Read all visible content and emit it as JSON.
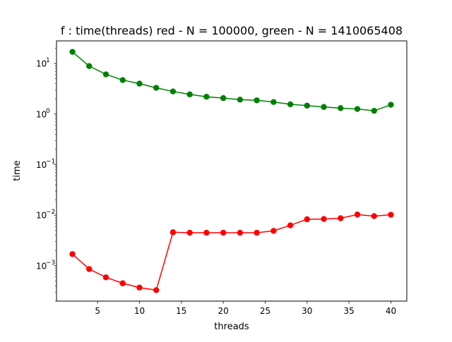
{
  "chart_data": {
    "type": "line",
    "title": "f : time(threads) red - N = 100000, green - N = 1410065408",
    "xlabel": "threads",
    "ylabel": "time",
    "xlim": [
      0.1,
      41.9
    ],
    "ylim": [
      0.0002,
      28
    ],
    "yscale": "log",
    "grid": false,
    "x_ticks": [
      5,
      10,
      15,
      20,
      25,
      30,
      35,
      40
    ],
    "y_ticks": [
      {
        "value": 10,
        "base": "10",
        "exp": "1"
      },
      {
        "value": 1,
        "base": "10",
        "exp": "0"
      },
      {
        "value": 0.1,
        "base": "10",
        "exp": "−1"
      },
      {
        "value": 0.01,
        "base": "10",
        "exp": "−2"
      },
      {
        "value": 0.001,
        "base": "10",
        "exp": "−3"
      }
    ],
    "x": [
      2,
      4,
      6,
      8,
      10,
      12,
      14,
      16,
      18,
      20,
      22,
      24,
      26,
      28,
      30,
      32,
      34,
      36,
      38,
      40
    ],
    "series": [
      {
        "color": "#008000",
        "values": [
          17.0,
          8.9,
          6.1,
          4.7,
          4.0,
          3.3,
          2.8,
          2.45,
          2.2,
          2.07,
          1.93,
          1.87,
          1.73,
          1.56,
          1.47,
          1.38,
          1.31,
          1.26,
          1.16,
          1.53
        ]
      },
      {
        "color": "#ff0000",
        "values": [
          0.0017,
          0.00086,
          0.00059,
          0.00045,
          0.00037,
          0.00033,
          0.0046,
          0.0045,
          0.0045,
          0.0045,
          0.0045,
          0.0045,
          0.0049,
          0.0063,
          0.0083,
          0.0084,
          0.0087,
          0.0103,
          0.0096,
          0.0102
        ]
      }
    ]
  }
}
